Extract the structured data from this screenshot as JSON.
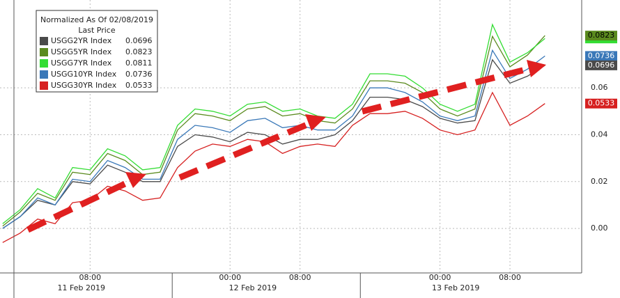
{
  "chart_data": {
    "type": "line",
    "legend_title": "Normalized As Of 02/08/2019",
    "legend_subtitle": "Last Price",
    "legend_position": "upper left",
    "x": [
      -2,
      0,
      2,
      4,
      6,
      8,
      10,
      12,
      14,
      16,
      18,
      20,
      22,
      24,
      26,
      28,
      30,
      32,
      34,
      36,
      38,
      40,
      42,
      44,
      46,
      48,
      50,
      52,
      54,
      56,
      58,
      60
    ],
    "xlim": [
      -2.3,
      64.2
    ],
    "xticks": [
      {
        "value": 8,
        "label": "08:00"
      },
      {
        "value": 24,
        "label": "00:00"
      },
      {
        "value": 32,
        "label": "08:00"
      },
      {
        "value": 48,
        "label": "00:00"
      },
      {
        "value": 56,
        "label": "08:00"
      }
    ],
    "date_ticks": [
      {
        "value": 7,
        "label": "11 Feb 2019"
      },
      {
        "value": 26.6,
        "label": "12 Feb 2019"
      },
      {
        "value": 49.8,
        "label": "13 Feb 2019"
      }
    ],
    "ylim": [
      -0.019,
      0.0975
    ],
    "yticks": [
      {
        "value": 0,
        "label": "0.00"
      },
      {
        "value": 0.02,
        "label": "0.02"
      },
      {
        "value": 0.04,
        "label": "0.04"
      },
      {
        "value": 0.06,
        "label": "0.06"
      }
    ],
    "grid": true,
    "series": [
      {
        "name": "USGG2YR Index",
        "color": "#4a4a4a",
        "values": [
          0.0,
          0.005,
          0.012,
          0.01,
          0.02,
          0.019,
          0.027,
          0.024,
          0.02,
          0.02,
          0.035,
          0.04,
          0.039,
          0.037,
          0.041,
          0.04,
          0.036,
          0.038,
          0.038,
          0.04,
          0.046,
          0.056,
          0.056,
          0.055,
          0.052,
          0.047,
          0.045,
          0.046,
          0.072,
          0.062,
          0.065,
          0.0696
        ]
      },
      {
        "name": "USGG5YR Index",
        "color": "#5a8a1e",
        "values": [
          0.001,
          0.007,
          0.015,
          0.012,
          0.024,
          0.023,
          0.032,
          0.029,
          0.023,
          0.024,
          0.042,
          0.049,
          0.048,
          0.046,
          0.051,
          0.052,
          0.048,
          0.049,
          0.046,
          0.045,
          0.051,
          0.063,
          0.063,
          0.062,
          0.058,
          0.051,
          0.048,
          0.051,
          0.082,
          0.069,
          0.074,
          0.0823
        ]
      },
      {
        "name": "USGG7YR Index",
        "color": "#33dd33",
        "values": [
          0.002,
          0.008,
          0.017,
          0.013,
          0.026,
          0.025,
          0.034,
          0.031,
          0.025,
          0.026,
          0.044,
          0.051,
          0.05,
          0.048,
          0.053,
          0.054,
          0.05,
          0.051,
          0.048,
          0.047,
          0.053,
          0.066,
          0.066,
          0.065,
          0.06,
          0.053,
          0.05,
          0.053,
          0.087,
          0.071,
          0.075,
          0.0811
        ]
      },
      {
        "name": "USGG10YR Index",
        "color": "#3a78b8",
        "values": [
          0.0,
          0.005,
          0.013,
          0.01,
          0.021,
          0.02,
          0.029,
          0.026,
          0.021,
          0.021,
          0.038,
          0.044,
          0.043,
          0.041,
          0.046,
          0.047,
          0.043,
          0.044,
          0.042,
          0.042,
          0.048,
          0.06,
          0.06,
          0.058,
          0.054,
          0.048,
          0.046,
          0.048,
          0.076,
          0.064,
          0.068,
          0.0736
        ]
      },
      {
        "name": "USGG30YR Index",
        "color": "#d62020",
        "values": [
          -0.006,
          -0.002,
          0.004,
          0.002,
          0.011,
          0.012,
          0.018,
          0.016,
          0.012,
          0.013,
          0.026,
          0.033,
          0.036,
          0.035,
          0.038,
          0.037,
          0.032,
          0.035,
          0.036,
          0.035,
          0.044,
          0.049,
          0.049,
          0.05,
          0.047,
          0.042,
          0.04,
          0.042,
          0.058,
          0.044,
          0.048,
          0.0533
        ]
      }
    ]
  }
}
